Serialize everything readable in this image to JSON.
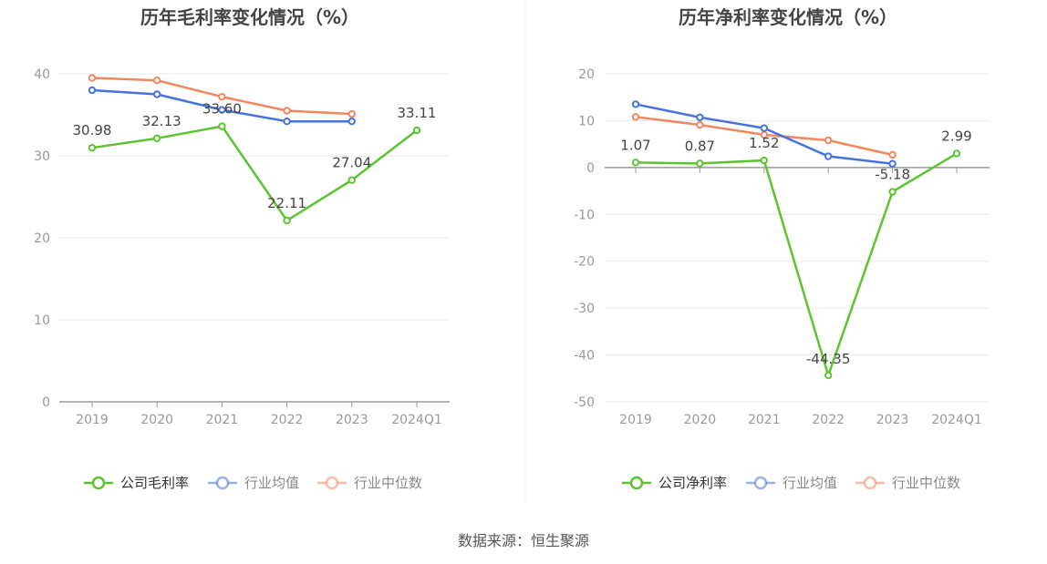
{
  "page": {
    "source_label": "数据来源：恒生聚源"
  },
  "colors": {
    "company": "#5cc431",
    "industry_avg": "#4473de",
    "industry_median": "#f2875c",
    "grid": "#e6e8ef",
    "axis": "#999999",
    "tick_text": "#999999",
    "label_text": "#444444",
    "title_text": "#444444",
    "divider": "#eeeeee"
  },
  "chart_data": [
    {
      "type": "line",
      "title": "历年毛利率变化情况（%）",
      "categories": [
        "2019",
        "2020",
        "2021",
        "2022",
        "2023",
        "2024Q1"
      ],
      "ylim": [
        0,
        40
      ],
      "yticks": [
        0,
        10,
        20,
        30,
        40
      ],
      "grid": true,
      "legend_position": "bottom",
      "series": [
        {
          "name": "公司毛利率",
          "key": "company",
          "values": [
            30.98,
            32.13,
            33.6,
            22.11,
            27.04,
            33.11
          ],
          "labels": [
            "30.98",
            "32.13",
            "33.60",
            "22.11",
            "27.04",
            "33.11"
          ]
        },
        {
          "name": "行业均值",
          "key": "industry_avg",
          "values": [
            38.0,
            37.5,
            35.6,
            34.2,
            34.2,
            null
          ]
        },
        {
          "name": "行业中位数",
          "key": "industry_median",
          "values": [
            39.5,
            39.2,
            37.2,
            35.5,
            35.1,
            null
          ]
        }
      ]
    },
    {
      "type": "line",
      "title": "历年净利率变化情况（%）",
      "categories": [
        "2019",
        "2020",
        "2021",
        "2022",
        "2023",
        "2024Q1"
      ],
      "ylim": [
        -50,
        20
      ],
      "yticks": [
        -50,
        -40,
        -30,
        -20,
        -10,
        0,
        10,
        20
      ],
      "grid": true,
      "legend_position": "bottom",
      "series": [
        {
          "name": "公司净利率",
          "key": "company",
          "values": [
            1.07,
            0.87,
            1.52,
            -44.35,
            -5.18,
            2.99
          ],
          "labels": [
            "1.07",
            "0.87",
            "1.52",
            "-44.35",
            "-5.18",
            "2.99"
          ]
        },
        {
          "name": "行业均值",
          "key": "industry_avg",
          "values": [
            13.5,
            10.7,
            8.4,
            2.4,
            0.8,
            null
          ]
        },
        {
          "name": "行业中位数",
          "key": "industry_median",
          "values": [
            10.8,
            9.1,
            7.0,
            5.8,
            2.7,
            null
          ]
        }
      ]
    }
  ]
}
